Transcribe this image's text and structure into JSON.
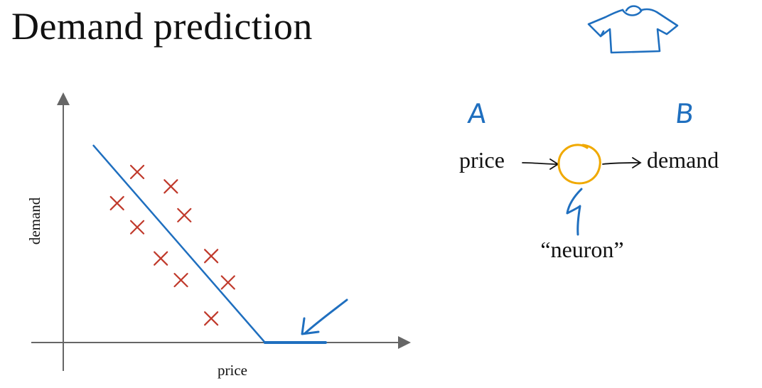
{
  "slide": {
    "title": "Demand prediction"
  },
  "colors": {
    "axis": "#666666",
    "pen_blue": "#1f6fbf",
    "marker_red": "#c0392b",
    "neuron_orange": "#f0a900",
    "text": "#111111"
  },
  "chart_data": {
    "type": "scatter",
    "title": "",
    "xlabel": "price",
    "ylabel": "demand",
    "xlim": [
      0,
      10
    ],
    "ylim": [
      0,
      10
    ],
    "grid": false,
    "points": [
      {
        "x": 2.2,
        "y": 7.1
      },
      {
        "x": 3.2,
        "y": 6.5
      },
      {
        "x": 1.6,
        "y": 5.8
      },
      {
        "x": 3.6,
        "y": 5.3
      },
      {
        "x": 2.2,
        "y": 4.8
      },
      {
        "x": 2.9,
        "y": 3.5
      },
      {
        "x": 4.4,
        "y": 3.6
      },
      {
        "x": 3.5,
        "y": 2.6
      },
      {
        "x": 4.9,
        "y": 2.5
      },
      {
        "x": 4.4,
        "y": 1.0
      }
    ],
    "fit_line": [
      {
        "x": 0.9,
        "y": 8.2
      },
      {
        "x": 6.0,
        "y": 0.0
      },
      {
        "x": 7.8,
        "y": 0.0
      }
    ]
  },
  "neuron_diagram": {
    "input_letter": "A",
    "output_letter": "B",
    "input_label": "price",
    "output_label": "demand",
    "neuron_label": "“neuron”"
  },
  "icons": {
    "tshirt": "tshirt-icon",
    "pointer_arrow": "arrow-icon"
  }
}
